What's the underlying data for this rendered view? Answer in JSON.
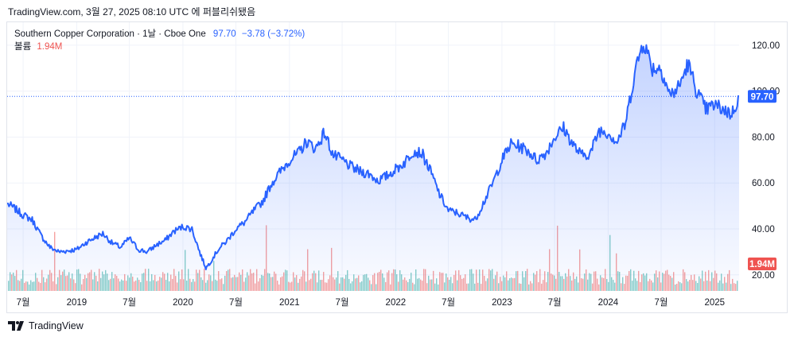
{
  "header": {
    "text": "TradingView.com, 3월 27, 2025 08:10 UTC 에 퍼블리쉬됐음"
  },
  "legend": {
    "symbol": "Southern Copper Corporation · 1날 · Cboe One",
    "last_price": "97.70",
    "change": "−3.78 (−3.72%)",
    "volume_label": "볼륨",
    "volume_value": "1.94M"
  },
  "price_tag": "97.70",
  "volume_tag": "1.94M",
  "footer": {
    "brand": "TradingView"
  },
  "colors": {
    "line": "#2962ff",
    "area_top": "#2962ff",
    "volume_up": "#26a69a",
    "volume_down": "#ef5350",
    "grid": "#f0f3fa"
  },
  "chart_data": {
    "type": "area",
    "title": "Southern Copper Corporation · 1날 · Cboe One",
    "y_axis_ticks": [
      20,
      40,
      60,
      80,
      100,
      120
    ],
    "y_tick_labels": [
      "20.00",
      "40.00",
      "60.00",
      "80.00",
      "100.00",
      "120.00"
    ],
    "ylim": [
      13,
      130
    ],
    "x_tick_labels": [
      "7월",
      "2019",
      "7월",
      "2020",
      "7월",
      "2021",
      "7월",
      "2022",
      "7월",
      "2023",
      "7월",
      "2024",
      "7월",
      "2025"
    ],
    "x_range": [
      "2018-05-07",
      "2025-03-26"
    ],
    "x_tick_dates": [
      "2018-07-01",
      "2019-01-01",
      "2019-07-01",
      "2020-01-01",
      "2020-07-01",
      "2021-01-01",
      "2021-07-01",
      "2022-01-01",
      "2022-07-01",
      "2023-01-01",
      "2023-07-01",
      "2024-01-01",
      "2024-07-01",
      "2025-01-01"
    ],
    "last_value": 97.7,
    "series": [
      {
        "values": [
          [
            "2018-05-07",
            51
          ],
          [
            "2018-06-01",
            49
          ],
          [
            "2018-07-01",
            46
          ],
          [
            "2018-08-01",
            44
          ],
          [
            "2018-09-01",
            37
          ],
          [
            "2018-10-01",
            32
          ],
          [
            "2018-11-01",
            30
          ],
          [
            "2019-01-01",
            31
          ],
          [
            "2019-02-01",
            34
          ],
          [
            "2019-03-01",
            36
          ],
          [
            "2019-04-01",
            38
          ],
          [
            "2019-05-01",
            34
          ],
          [
            "2019-06-01",
            32
          ],
          [
            "2019-07-01",
            36
          ],
          [
            "2019-08-01",
            31
          ],
          [
            "2019-09-01",
            30
          ],
          [
            "2019-10-01",
            33
          ],
          [
            "2019-11-01",
            35
          ],
          [
            "2019-12-01",
            39
          ],
          [
            "2020-01-01",
            41
          ],
          [
            "2020-02-01",
            40
          ],
          [
            "2020-03-01",
            29
          ],
          [
            "2020-03-20",
            23
          ],
          [
            "2020-04-01",
            25
          ],
          [
            "2020-05-01",
            31
          ],
          [
            "2020-06-01",
            35
          ],
          [
            "2020-07-01",
            40
          ],
          [
            "2020-08-01",
            43
          ],
          [
            "2020-09-01",
            48
          ],
          [
            "2020-10-01",
            52
          ],
          [
            "2020-11-01",
            60
          ],
          [
            "2020-12-01",
            65
          ],
          [
            "2021-01-01",
            70
          ],
          [
            "2021-02-01",
            73
          ],
          [
            "2021-03-01",
            78
          ],
          [
            "2021-04-01",
            75
          ],
          [
            "2021-05-01",
            82
          ],
          [
            "2021-06-01",
            72
          ],
          [
            "2021-07-01",
            70
          ],
          [
            "2021-08-01",
            67
          ],
          [
            "2021-09-01",
            65
          ],
          [
            "2021-10-01",
            64
          ],
          [
            "2021-11-01",
            61
          ],
          [
            "2021-12-01",
            63
          ],
          [
            "2022-01-01",
            66
          ],
          [
            "2022-02-01",
            69
          ],
          [
            "2022-03-01",
            74
          ],
          [
            "2022-04-01",
            73
          ],
          [
            "2022-05-01",
            65
          ],
          [
            "2022-06-01",
            55
          ],
          [
            "2022-07-01",
            48
          ],
          [
            "2022-08-01",
            47
          ],
          [
            "2022-09-01",
            45
          ],
          [
            "2022-10-01",
            44
          ],
          [
            "2022-11-01",
            52
          ],
          [
            "2022-12-01",
            60
          ],
          [
            "2023-01-01",
            70
          ],
          [
            "2023-02-01",
            77
          ],
          [
            "2023-03-01",
            76
          ],
          [
            "2023-04-01",
            74
          ],
          [
            "2023-05-01",
            70
          ],
          [
            "2023-06-01",
            73
          ],
          [
            "2023-07-01",
            80
          ],
          [
            "2023-08-01",
            84
          ],
          [
            "2023-09-01",
            77
          ],
          [
            "2023-10-01",
            72
          ],
          [
            "2023-11-01",
            73
          ],
          [
            "2023-12-01",
            83
          ],
          [
            "2024-01-01",
            82
          ],
          [
            "2024-02-01",
            78
          ],
          [
            "2024-03-01",
            86
          ],
          [
            "2024-04-01",
            108
          ],
          [
            "2024-05-01",
            122
          ],
          [
            "2024-06-01",
            110
          ],
          [
            "2024-07-01",
            110
          ],
          [
            "2024-08-01",
            98
          ],
          [
            "2024-09-01",
            102
          ],
          [
            "2024-10-01",
            112
          ],
          [
            "2024-11-01",
            100
          ],
          [
            "2024-12-01",
            92
          ],
          [
            "2025-01-01",
            94
          ],
          [
            "2025-02-01",
            92
          ],
          [
            "2025-03-01",
            90
          ],
          [
            "2025-03-26",
            97.7
          ]
        ]
      }
    ],
    "volume_series": {
      "name": "볼륨",
      "last_value": "1.94M"
    }
  }
}
